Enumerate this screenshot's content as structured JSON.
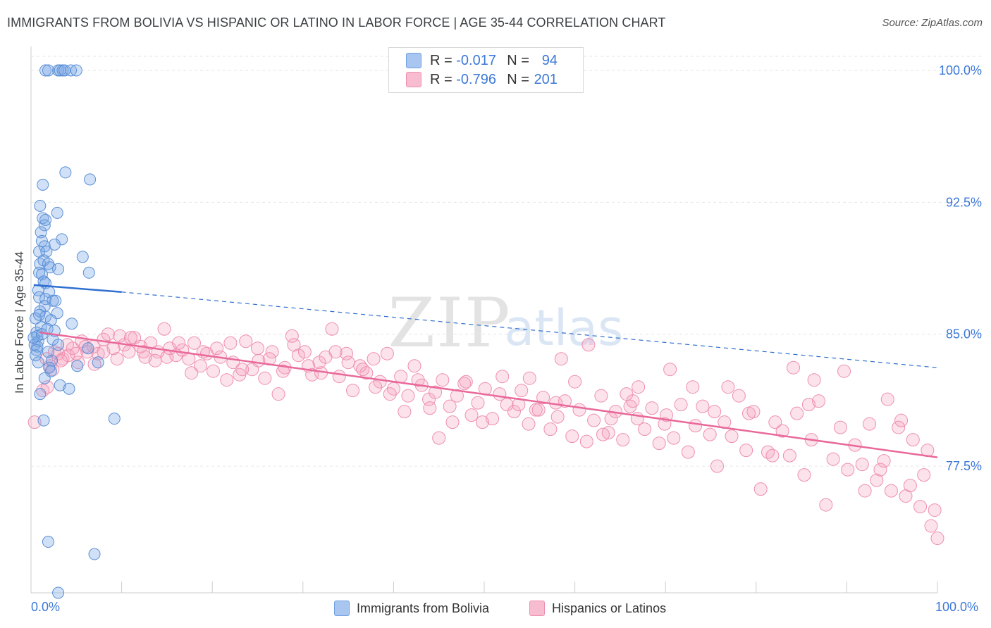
{
  "title": "IMMIGRANTS FROM BOLIVIA VS HISPANIC OR LATINO IN LABOR FORCE | AGE 35-44 CORRELATION CHART",
  "source": "Source: ZipAtlas.com",
  "watermark": "ZIPatlas",
  "legend": {
    "rows": [
      {
        "r_label": "R =",
        "r_value": "-0.017",
        "n_label": "N =",
        "n_value": "94",
        "color": "#a8c6f0",
        "border": "#6f9fe0"
      },
      {
        "r_label": "R =",
        "r_value": "-0.796",
        "n_label": "N =",
        "n_value": "201",
        "color": "#f8bcd0",
        "border": "#ee8fae"
      }
    ]
  },
  "bottom_legend": {
    "bolivia": "Immigrants from Bolivia",
    "hispanic": "Hispanics or Latinos"
  },
  "colors": {
    "bolivia_fill": "rgba(120,165,230,0.35)",
    "bolivia_stroke": "#5b8fd6",
    "bolivia_line": "#2f6fd0",
    "hispanic_fill": "rgba(245,160,190,0.30)",
    "hispanic_stroke": "#ee8fae",
    "hispanic_line": "#e8699a",
    "axis_text": "#3c78d8",
    "grid": "#e6e6e6"
  },
  "chart_data": {
    "type": "scatter",
    "title": "IMMIGRANTS FROM BOLIVIA VS HISPANIC OR LATINO IN LABOR FORCE | AGE 35-44 CORRELATION CHART",
    "xlabel": "",
    "ylabel": "In Labor Force | Age 35-44",
    "xlim": [
      0,
      100
    ],
    "ylim": [
      70.3,
      101.2
    ],
    "x_tick_labels": [
      "0.0%",
      "100.0%"
    ],
    "y_ticks": [
      77.5,
      85.0,
      92.5,
      100.0
    ],
    "y_tick_labels": [
      "77.5%",
      "85.0%",
      "92.5%",
      "100.0%"
    ],
    "grid": true,
    "series": [
      {
        "name": "Immigrants from Bolivia",
        "trend": {
          "x0": 0.3,
          "y0": 87.8,
          "x1": 10.0,
          "y1": 87.4,
          "dashed_to_x": 100.0,
          "dashed_to_y": 83.1
        },
        "points": [
          [
            1.6,
            100.0
          ],
          [
            1.9,
            100.0
          ],
          [
            3.0,
            100.0
          ],
          [
            3.2,
            100.0
          ],
          [
            3.5,
            100.0
          ],
          [
            3.7,
            100.0
          ],
          [
            4.4,
            100.0
          ],
          [
            5.0,
            100.0
          ],
          [
            3.8,
            94.2
          ],
          [
            6.5,
            93.8
          ],
          [
            1.3,
            93.5
          ],
          [
            1.0,
            92.3
          ],
          [
            2.9,
            91.9
          ],
          [
            1.3,
            91.6
          ],
          [
            1.5,
            91.2
          ],
          [
            1.6,
            91.5
          ],
          [
            1.1,
            90.8
          ],
          [
            3.4,
            90.4
          ],
          [
            1.2,
            90.3
          ],
          [
            1.5,
            90.0
          ],
          [
            0.9,
            89.7
          ],
          [
            2.6,
            90.1
          ],
          [
            1.7,
            89.7
          ],
          [
            5.7,
            89.4
          ],
          [
            1.0,
            89.0
          ],
          [
            1.4,
            89.2
          ],
          [
            1.9,
            89.0
          ],
          [
            2.1,
            88.8
          ],
          [
            0.9,
            88.5
          ],
          [
            1.2,
            88.4
          ],
          [
            3.0,
            88.7
          ],
          [
            6.4,
            88.5
          ],
          [
            1.4,
            88.0
          ],
          [
            1.6,
            87.9
          ],
          [
            0.8,
            87.5
          ],
          [
            2.0,
            87.4
          ],
          [
            0.9,
            87.1
          ],
          [
            1.6,
            87.0
          ],
          [
            2.4,
            86.9
          ],
          [
            2.7,
            86.9
          ],
          [
            1.5,
            86.6
          ],
          [
            1.0,
            86.3
          ],
          [
            2.9,
            86.2
          ],
          [
            1.6,
            86.0
          ],
          [
            0.5,
            85.9
          ],
          [
            2.2,
            85.8
          ],
          [
            4.5,
            85.6
          ],
          [
            1.1,
            85.4
          ],
          [
            1.8,
            85.3
          ],
          [
            0.6,
            85.1
          ],
          [
            0.7,
            84.9
          ],
          [
            0.8,
            84.6
          ],
          [
            2.4,
            84.7
          ],
          [
            0.4,
            84.4
          ],
          [
            0.7,
            84.3
          ],
          [
            3.0,
            84.4
          ],
          [
            0.6,
            84.1
          ],
          [
            1.9,
            84.0
          ],
          [
            6.3,
            84.2
          ],
          [
            0.5,
            83.8
          ],
          [
            2.3,
            83.5
          ],
          [
            0.8,
            83.4
          ],
          [
            7.4,
            83.4
          ],
          [
            5.1,
            83.2
          ],
          [
            2.0,
            83.1
          ],
          [
            2.2,
            82.9
          ],
          [
            1.5,
            82.5
          ],
          [
            3.2,
            82.1
          ],
          [
            4.2,
            81.9
          ],
          [
            1.0,
            81.6
          ],
          [
            1.4,
            80.1
          ],
          [
            9.2,
            80.2
          ],
          [
            1.9,
            73.2
          ],
          [
            7.0,
            72.5
          ],
          [
            3.0,
            70.3
          ],
          [
            0.3,
            84.8
          ],
          [
            1.2,
            85.0
          ],
          [
            0.9,
            86.1
          ],
          [
            2.6,
            85.2
          ]
        ]
      },
      {
        "name": "Hispanics or Latinos",
        "trend": {
          "x0": 1.0,
          "y0": 85.1,
          "x1": 100.0,
          "y1": 78.0
        },
        "points": [
          [
            0.4,
            80.0
          ],
          [
            1.3,
            81.8
          ],
          [
            1.8,
            82.0
          ],
          [
            2.1,
            83.2
          ],
          [
            2.6,
            84.0
          ],
          [
            3.0,
            83.9
          ],
          [
            3.5,
            83.6
          ],
          [
            4.1,
            83.8
          ],
          [
            4.6,
            84.2
          ],
          [
            5.2,
            83.4
          ],
          [
            5.6,
            84.6
          ],
          [
            6.2,
            84.0
          ],
          [
            6.9,
            84.3
          ],
          [
            7.4,
            83.9
          ],
          [
            8.0,
            84.7
          ],
          [
            8.5,
            85.0
          ],
          [
            9.1,
            84.2
          ],
          [
            9.8,
            84.9
          ],
          [
            10.3,
            84.4
          ],
          [
            10.8,
            84.0
          ],
          [
            11.4,
            84.8
          ],
          [
            12.1,
            84.3
          ],
          [
            12.6,
            83.7
          ],
          [
            13.2,
            84.5
          ],
          [
            14.0,
            84.0
          ],
          [
            14.7,
            85.3
          ],
          [
            15.3,
            84.2
          ],
          [
            16.0,
            83.8
          ],
          [
            16.7,
            84.1
          ],
          [
            17.4,
            83.6
          ],
          [
            18.0,
            84.5
          ],
          [
            18.7,
            83.2
          ],
          [
            19.4,
            83.9
          ],
          [
            20.1,
            82.9
          ],
          [
            20.9,
            83.7
          ],
          [
            21.6,
            82.4
          ],
          [
            22.3,
            83.4
          ],
          [
            23.0,
            82.7
          ],
          [
            23.7,
            84.6
          ],
          [
            24.4,
            83.0
          ],
          [
            25.1,
            83.5
          ],
          [
            25.8,
            82.5
          ],
          [
            26.6,
            84.0
          ],
          [
            27.3,
            81.6
          ],
          [
            28.0,
            83.1
          ],
          [
            28.8,
            84.9
          ],
          [
            29.5,
            83.8
          ],
          [
            30.2,
            84.0
          ],
          [
            31.0,
            82.7
          ],
          [
            31.8,
            83.4
          ],
          [
            32.5,
            83.7
          ],
          [
            33.2,
            85.3
          ],
          [
            34.0,
            82.6
          ],
          [
            34.8,
            83.9
          ],
          [
            35.5,
            81.8
          ],
          [
            36.3,
            83.2
          ],
          [
            37.0,
            82.8
          ],
          [
            37.8,
            83.6
          ],
          [
            38.5,
            82.3
          ],
          [
            39.3,
            83.9
          ],
          [
            40.0,
            81.9
          ],
          [
            40.8,
            82.6
          ],
          [
            41.6,
            81.5
          ],
          [
            42.3,
            83.2
          ],
          [
            43.1,
            82.1
          ],
          [
            43.9,
            81.3
          ],
          [
            44.6,
            81.7
          ],
          [
            45.4,
            82.4
          ],
          [
            46.2,
            80.9
          ],
          [
            47.0,
            81.5
          ],
          [
            47.8,
            82.2
          ],
          [
            48.6,
            80.4
          ],
          [
            49.3,
            81.1
          ],
          [
            50.1,
            81.9
          ],
          [
            50.9,
            80.2
          ],
          [
            51.7,
            81.6
          ],
          [
            52.5,
            81.0
          ],
          [
            53.3,
            80.6
          ],
          [
            54.1,
            81.8
          ],
          [
            54.9,
            79.9
          ],
          [
            55.7,
            80.7
          ],
          [
            56.5,
            81.4
          ],
          [
            57.3,
            79.6
          ],
          [
            58.1,
            80.3
          ],
          [
            58.9,
            81.2
          ],
          [
            59.7,
            79.2
          ],
          [
            60.5,
            80.7
          ],
          [
            61.3,
            78.9
          ],
          [
            62.1,
            80.1
          ],
          [
            62.9,
            81.5
          ],
          [
            63.7,
            79.4
          ],
          [
            64.5,
            80.6
          ],
          [
            65.3,
            79.0
          ],
          [
            66.1,
            80.9
          ],
          [
            66.9,
            80.2
          ],
          [
            67.7,
            79.6
          ],
          [
            68.5,
            80.8
          ],
          [
            69.3,
            78.8
          ],
          [
            70.1,
            80.4
          ],
          [
            70.9,
            79.1
          ],
          [
            71.7,
            81.0
          ],
          [
            72.5,
            78.3
          ],
          [
            73.3,
            79.8
          ],
          [
            74.1,
            80.9
          ],
          [
            74.9,
            79.3
          ],
          [
            75.7,
            77.5
          ],
          [
            76.5,
            80.0
          ],
          [
            77.3,
            79.2
          ],
          [
            78.1,
            81.5
          ],
          [
            78.9,
            78.4
          ],
          [
            79.7,
            80.6
          ],
          [
            80.5,
            76.2
          ],
          [
            81.3,
            78.3
          ],
          [
            82.1,
            80.0
          ],
          [
            82.9,
            79.5
          ],
          [
            83.7,
            78.1
          ],
          [
            84.5,
            80.5
          ],
          [
            85.3,
            77.0
          ],
          [
            86.1,
            79.0
          ],
          [
            86.9,
            81.2
          ],
          [
            87.7,
            75.3
          ],
          [
            88.5,
            77.9
          ],
          [
            89.3,
            79.7
          ],
          [
            90.1,
            77.3
          ],
          [
            90.9,
            78.7
          ],
          [
            91.7,
            77.6
          ],
          [
            92.5,
            79.9
          ],
          [
            93.3,
            76.7
          ],
          [
            94.1,
            77.8
          ],
          [
            94.9,
            76.1
          ],
          [
            95.7,
            79.7
          ],
          [
            96.5,
            75.8
          ],
          [
            97.3,
            79.0
          ],
          [
            98.1,
            75.2
          ],
          [
            98.9,
            78.4
          ],
          [
            99.7,
            75.0
          ],
          [
            100.0,
            73.4
          ],
          [
            99.3,
            74.1
          ],
          [
            98.5,
            77.0
          ],
          [
            97.0,
            76.4
          ],
          [
            96.0,
            80.1
          ],
          [
            93.7,
            77.3
          ],
          [
            92.0,
            76.1
          ],
          [
            89.7,
            82.9
          ],
          [
            86.4,
            82.4
          ],
          [
            84.1,
            83.1
          ],
          [
            76.9,
            82.0
          ],
          [
            70.5,
            83.0
          ],
          [
            65.7,
            81.6
          ],
          [
            60.0,
            82.3
          ],
          [
            57.9,
            81.1
          ],
          [
            56.0,
            80.7
          ],
          [
            55.0,
            82.5
          ],
          [
            53.8,
            81.0
          ],
          [
            52.0,
            82.6
          ],
          [
            49.8,
            80.0
          ],
          [
            48.0,
            82.3
          ],
          [
            46.5,
            80.0
          ],
          [
            45.0,
            79.1
          ],
          [
            44.0,
            80.8
          ],
          [
            42.7,
            82.4
          ],
          [
            41.2,
            80.6
          ],
          [
            39.6,
            81.6
          ],
          [
            38.0,
            82.0
          ],
          [
            36.6,
            83.0
          ],
          [
            35.0,
            83.4
          ],
          [
            33.6,
            84.0
          ],
          [
            32.0,
            82.8
          ],
          [
            30.6,
            83.2
          ],
          [
            29.0,
            84.4
          ],
          [
            27.8,
            82.9
          ],
          [
            26.3,
            83.6
          ],
          [
            25.0,
            84.2
          ],
          [
            23.3,
            83.0
          ],
          [
            22.0,
            84.5
          ],
          [
            20.5,
            84.2
          ],
          [
            19.0,
            84.0
          ],
          [
            17.7,
            82.8
          ],
          [
            16.3,
            84.5
          ],
          [
            15.0,
            83.7
          ],
          [
            13.7,
            83.5
          ],
          [
            12.4,
            84.0
          ],
          [
            11.0,
            84.8
          ],
          [
            9.5,
            83.6
          ],
          [
            8.0,
            84.0
          ],
          [
            7.0,
            83.3
          ],
          [
            6.0,
            84.3
          ],
          [
            5.0,
            83.9
          ],
          [
            4.0,
            84.4
          ],
          [
            3.3,
            83.5
          ],
          [
            2.4,
            83.0
          ],
          [
            1.7,
            83.6
          ],
          [
            61.5,
            84.4
          ],
          [
            73.0,
            82.0
          ],
          [
            58.5,
            83.6
          ],
          [
            67.0,
            82.0
          ],
          [
            79.2,
            80.5
          ],
          [
            81.8,
            78.1
          ],
          [
            85.8,
            81.0
          ],
          [
            63.1,
            79.3
          ],
          [
            66.4,
            81.2
          ],
          [
            69.9,
            79.9
          ],
          [
            75.4,
            80.6
          ],
          [
            64.0,
            80.2
          ],
          [
            94.5,
            81.3
          ]
        ]
      }
    ]
  }
}
